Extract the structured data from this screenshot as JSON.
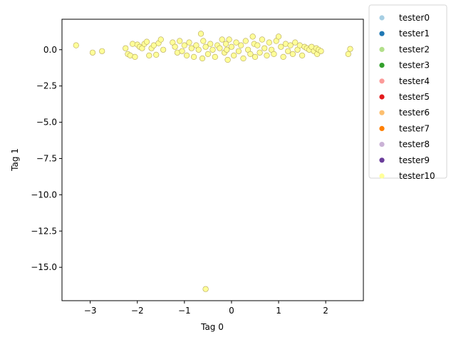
{
  "chart_data": {
    "type": "scatter",
    "title": "",
    "xlabel": "Tag 0",
    "ylabel": "Tag 1",
    "xlim": [
      -3.6,
      2.8
    ],
    "ylim": [
      -17.3,
      2.1
    ],
    "xticks": [
      -3,
      -2,
      -1,
      0,
      1,
      2
    ],
    "yticks": [
      0.0,
      -2.5,
      -5.0,
      -7.5,
      -10.0,
      -12.5,
      -15.0
    ],
    "ytick_labels": [
      "0.0",
      "−2.5",
      "−5.0",
      "−7.5",
      "−10.0",
      "−12.5",
      "−15.0"
    ],
    "xtick_labels": [
      "−3",
      "−2",
      "−1",
      "0",
      "1",
      "2"
    ],
    "grid": false,
    "legend_position": "outside-right-top",
    "series": [
      {
        "name": "tester0",
        "color": "#a6cee3",
        "points": []
      },
      {
        "name": "tester1",
        "color": "#1f78b4",
        "points": []
      },
      {
        "name": "tester2",
        "color": "#b2df8a",
        "points": []
      },
      {
        "name": "tester3",
        "color": "#33a02c",
        "points": []
      },
      {
        "name": "tester4",
        "color": "#fb9a99",
        "points": []
      },
      {
        "name": "tester5",
        "color": "#e31a1c",
        "points": []
      },
      {
        "name": "tester6",
        "color": "#fdbf6f",
        "points": []
      },
      {
        "name": "tester7",
        "color": "#ff7f00",
        "points": []
      },
      {
        "name": "tester8",
        "color": "#cab2d6",
        "points": []
      },
      {
        "name": "tester9",
        "color": "#6a3d9a",
        "points": []
      },
      {
        "name": "tester10",
        "color": "#ffff99",
        "points": [
          [
            -3.3,
            0.3
          ],
          [
            -2.95,
            -0.2
          ],
          [
            -2.75,
            -0.1
          ],
          [
            -2.25,
            0.1
          ],
          [
            -2.2,
            -0.3
          ],
          [
            -2.15,
            -0.4
          ],
          [
            -2.1,
            0.4
          ],
          [
            -2.05,
            -0.5
          ],
          [
            -2.0,
            0.35
          ],
          [
            -1.95,
            0.2
          ],
          [
            -1.9,
            0.1
          ],
          [
            -1.85,
            0.4
          ],
          [
            -1.8,
            0.55
          ],
          [
            -1.75,
            -0.4
          ],
          [
            -1.7,
            0.1
          ],
          [
            -1.65,
            0.3
          ],
          [
            -1.6,
            -0.35
          ],
          [
            -1.55,
            0.45
          ],
          [
            -1.5,
            0.7
          ],
          [
            -1.45,
            0.0
          ],
          [
            -1.25,
            0.5
          ],
          [
            -1.2,
            0.2
          ],
          [
            -1.15,
            -0.2
          ],
          [
            -1.1,
            0.6
          ],
          [
            -1.05,
            -0.1
          ],
          [
            -1.0,
            0.3
          ],
          [
            -0.95,
            -0.4
          ],
          [
            -0.9,
            0.5
          ],
          [
            -0.85,
            0.1
          ],
          [
            -0.8,
            -0.5
          ],
          [
            -0.75,
            0.3
          ],
          [
            -0.7,
            0.0
          ],
          [
            -0.65,
            1.1
          ],
          [
            -0.62,
            -0.6
          ],
          [
            -0.6,
            0.6
          ],
          [
            -0.55,
            0.2
          ],
          [
            -0.5,
            -0.3
          ],
          [
            -0.45,
            0.4
          ],
          [
            -0.4,
            0.0
          ],
          [
            -0.35,
            -0.5
          ],
          [
            -0.3,
            0.3
          ],
          [
            -0.25,
            0.1
          ],
          [
            -0.2,
            0.7
          ],
          [
            -0.15,
            -0.2
          ],
          [
            -0.12,
            0.4
          ],
          [
            -0.1,
            0.0
          ],
          [
            -0.08,
            -0.7
          ],
          [
            -0.05,
            0.7
          ],
          [
            0.0,
            0.2
          ],
          [
            0.05,
            -0.4
          ],
          [
            0.1,
            0.5
          ],
          [
            0.15,
            -0.1
          ],
          [
            0.2,
            0.3
          ],
          [
            0.25,
            -0.6
          ],
          [
            0.3,
            0.6
          ],
          [
            0.35,
            0.0
          ],
          [
            0.4,
            -0.3
          ],
          [
            0.45,
            0.9
          ],
          [
            0.48,
            0.4
          ],
          [
            0.5,
            -0.5
          ],
          [
            0.55,
            0.3
          ],
          [
            0.6,
            -0.2
          ],
          [
            0.65,
            0.7
          ],
          [
            0.7,
            0.1
          ],
          [
            0.75,
            -0.4
          ],
          [
            0.8,
            0.5
          ],
          [
            0.85,
            0.0
          ],
          [
            0.9,
            -0.3
          ],
          [
            0.95,
            0.6
          ],
          [
            1.0,
            0.9
          ],
          [
            1.05,
            0.2
          ],
          [
            1.1,
            -0.5
          ],
          [
            1.15,
            0.4
          ],
          [
            1.2,
            -0.1
          ],
          [
            1.25,
            0.3
          ],
          [
            1.3,
            -0.3
          ],
          [
            1.35,
            0.5
          ],
          [
            1.4,
            0.0
          ],
          [
            1.45,
            0.3
          ],
          [
            1.5,
            -0.4
          ],
          [
            1.55,
            0.2
          ],
          [
            1.6,
            0.1
          ],
          [
            1.65,
            0.0
          ],
          [
            1.7,
            0.2
          ],
          [
            1.75,
            -0.1
          ],
          [
            1.8,
            0.1
          ],
          [
            1.82,
            -0.3
          ],
          [
            1.85,
            0.0
          ],
          [
            1.9,
            -0.1
          ],
          [
            2.48,
            -0.3
          ],
          [
            2.52,
            0.05
          ],
          [
            -0.55,
            -16.5
          ]
        ]
      }
    ]
  }
}
